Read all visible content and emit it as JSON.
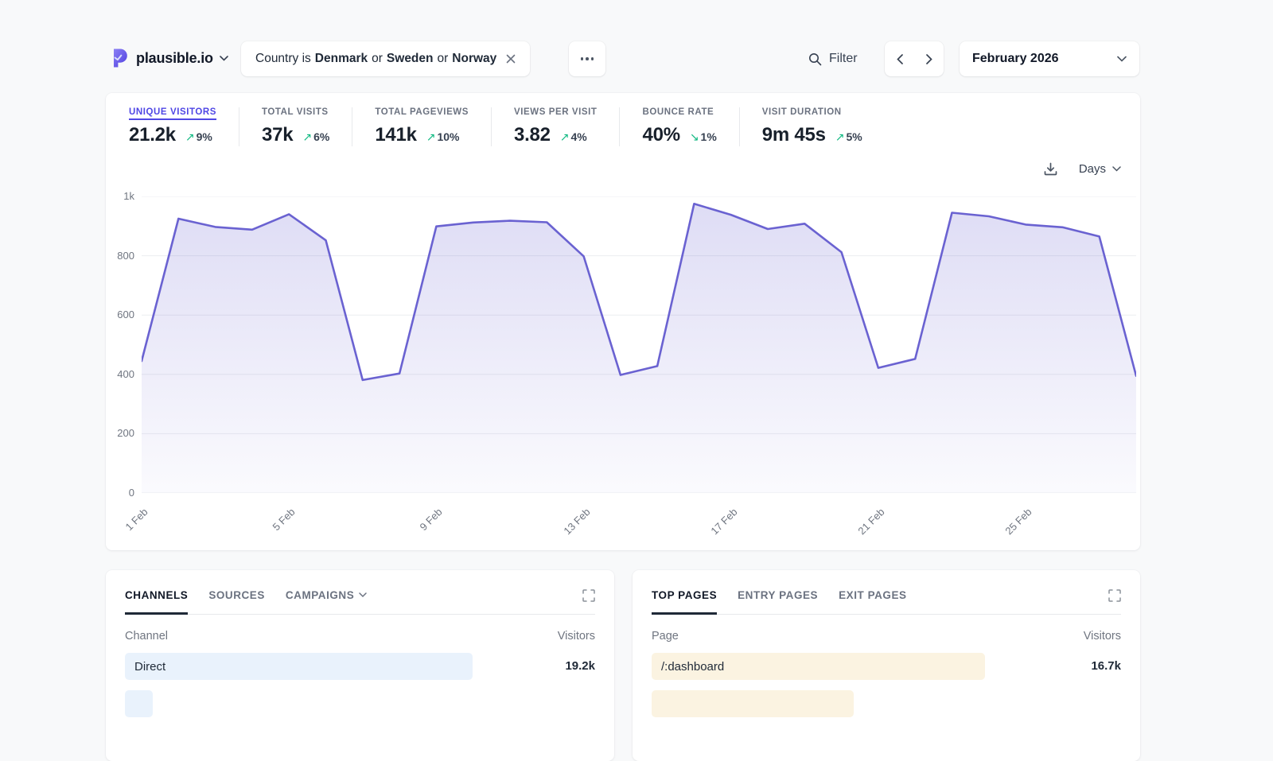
{
  "topbar": {
    "site_name": "plausible.io",
    "filter_chip": {
      "prefix": "Country is",
      "country1": "Denmark",
      "join1": "or",
      "country2": "Sweden",
      "join2": "or",
      "country3": "Norway"
    },
    "filter_label": "Filter",
    "period": "February 2026"
  },
  "stats": [
    {
      "label": "UNIQUE VISITORS",
      "value": "21.2k",
      "arrow": "↗",
      "delta": "9%"
    },
    {
      "label": "TOTAL VISITS",
      "value": "37k",
      "arrow": "↗",
      "delta": "6%"
    },
    {
      "label": "TOTAL PAGEVIEWS",
      "value": "141k",
      "arrow": "↗",
      "delta": "10%"
    },
    {
      "label": "VIEWS PER VISIT",
      "value": "3.82",
      "arrow": "↗",
      "delta": "4%"
    },
    {
      "label": "BOUNCE RATE",
      "value": "40%",
      "arrow": "↘",
      "delta": "1%"
    },
    {
      "label": "VISIT DURATION",
      "value": "9m 45s",
      "arrow": "↗",
      "delta": "5%"
    }
  ],
  "chart": {
    "interval_label": "Days"
  },
  "chart_data": {
    "type": "area",
    "x": [
      1,
      2,
      3,
      4,
      5,
      6,
      7,
      8,
      9,
      10,
      11,
      12,
      13,
      14,
      15,
      16,
      17,
      18,
      19,
      20,
      21,
      22,
      23,
      24,
      25,
      26,
      27,
      28
    ],
    "values": [
      445,
      925,
      897,
      888,
      940,
      852,
      381,
      403,
      899,
      912,
      918,
      913,
      798,
      398,
      428,
      975,
      938,
      890,
      908,
      812,
      422,
      452,
      945,
      933,
      905,
      896,
      865,
      395
    ],
    "x_ticks": [
      {
        "day": 1,
        "label": "1 Feb"
      },
      {
        "day": 5,
        "label": "5 Feb"
      },
      {
        "day": 9,
        "label": "9 Feb"
      },
      {
        "day": 13,
        "label": "13 Feb"
      },
      {
        "day": 17,
        "label": "17 Feb"
      },
      {
        "day": 21,
        "label": "21 Feb"
      },
      {
        "day": 25,
        "label": "25 Feb"
      }
    ],
    "y_ticks": [
      {
        "value": 0,
        "label": "0"
      },
      {
        "value": 200,
        "label": "200"
      },
      {
        "value": 400,
        "label": "400"
      },
      {
        "value": 600,
        "label": "600"
      },
      {
        "value": 800,
        "label": "800"
      },
      {
        "value": 1000,
        "label": "1k"
      }
    ],
    "ylim": [
      0,
      1000
    ],
    "grid": true,
    "legend": false,
    "line_color": "#6a62d1"
  },
  "channels_panel": {
    "tabs": [
      {
        "label": "CHANNELS",
        "active": true
      },
      {
        "label": "SOURCES",
        "active": false
      },
      {
        "label": "CAMPAIGNS",
        "active": false
      }
    ],
    "columns": {
      "name": "Channel",
      "value": "Visitors"
    },
    "rows": [
      {
        "name": "Direct",
        "value": "19.2k",
        "bar_pct": 74
      }
    ],
    "partial_row": {
      "bar_pct": 6
    }
  },
  "pages_panel": {
    "tabs": [
      {
        "label": "TOP PAGES",
        "active": true
      },
      {
        "label": "ENTRY PAGES",
        "active": false
      },
      {
        "label": "EXIT PAGES",
        "active": false
      }
    ],
    "columns": {
      "name": "Page",
      "value": "Visitors"
    },
    "rows": [
      {
        "name": "/:dashboard",
        "value": "16.7k",
        "bar_pct": 71
      }
    ],
    "partial_row": {
      "bar_pct": 43
    }
  },
  "colors": {
    "accent_indigo": "#4f46e5",
    "positive_green": "#10b981",
    "chart_line": "#6a62d1",
    "bar_blue": "#e9f2fc",
    "bar_yellow": "#fbf3e1"
  }
}
